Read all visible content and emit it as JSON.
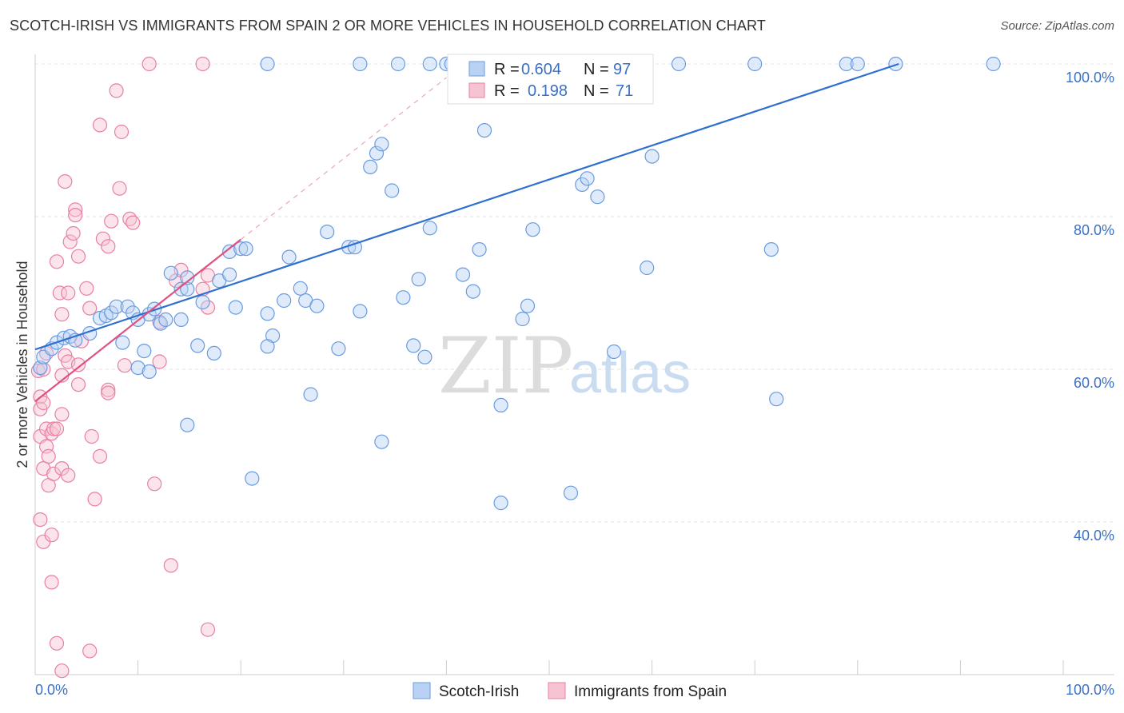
{
  "title": "SCOTCH-IRISH VS IMMIGRANTS FROM SPAIN 2 OR MORE VEHICLES IN HOUSEHOLD CORRELATION CHART",
  "source": "Source: ZipAtlas.com",
  "watermark": {
    "zip": "ZIP",
    "atlas": "atlas"
  },
  "colors": {
    "blue": "#6a9be0",
    "blue_fill": "#b9d2f3",
    "blue_line": "#2f6fcf",
    "pink": "#e880a2",
    "pink_fill": "#f6c3d3",
    "pink_line": "#e0517f",
    "tick_text": "#3a6fc4"
  },
  "legend": {
    "rows": [
      {
        "r_label": "R =",
        "r_value": "0.604",
        "n_label": "N =",
        "n_value": "97"
      },
      {
        "r_label": "R =",
        "r_value": "0.198",
        "n_label": "N =",
        "n_value": "71"
      }
    ]
  },
  "bottom_legend": [
    "Scotch-Irish",
    "Immigrants from Spain"
  ],
  "chart_data": {
    "type": "scatter",
    "title": "SCOTCH-IRISH VS IMMIGRANTS FROM SPAIN 2 OR MORE VEHICLES IN HOUSEHOLD CORRELATION CHART",
    "xlabel": "",
    "ylabel": "2 or more Vehicles in Household",
    "xlim": [
      0,
      100
    ],
    "ylim": [
      20,
      100
    ],
    "x_tick_labels": [
      "0.0%",
      "100.0%"
    ],
    "y_ticks": [
      40,
      60,
      80,
      100
    ],
    "y_tick_labels": [
      "40.0%",
      "60.0%",
      "80.0%",
      "100.0%"
    ],
    "grid": true,
    "series": [
      {
        "name": "Scotch-Irish",
        "color": "#6a9be0",
        "trend": {
          "x": [
            0,
            84
          ],
          "y": [
            62.6,
            100
          ]
        },
        "points": [
          [
            0.5,
            60.2
          ],
          [
            0.8,
            61.6
          ],
          [
            1.6,
            62.7
          ],
          [
            2.1,
            63.5
          ],
          [
            2.8,
            64.1
          ],
          [
            3.4,
            64.3
          ],
          [
            3.9,
            63.8
          ],
          [
            5.3,
            64.7
          ],
          [
            6.3,
            66.7
          ],
          [
            6.9,
            67.0
          ],
          [
            7.4,
            67.4
          ],
          [
            7.9,
            68.2
          ],
          [
            8.5,
            63.5
          ],
          [
            9.0,
            68.2
          ],
          [
            9.5,
            67.4
          ],
          [
            10.0,
            66.5
          ],
          [
            11.1,
            67.2
          ],
          [
            11.6,
            67.9
          ],
          [
            12.2,
            66.0
          ],
          [
            12.7,
            66.5
          ],
          [
            10.6,
            62.4
          ],
          [
            10.0,
            60.2
          ],
          [
            11.1,
            59.7
          ],
          [
            13.2,
            72.6
          ],
          [
            14.2,
            70.5
          ],
          [
            14.8,
            70.5
          ],
          [
            16.3,
            68.8
          ],
          [
            14.2,
            66.5
          ],
          [
            15.8,
            63.1
          ],
          [
            17.4,
            62.1
          ],
          [
            14.8,
            72.0
          ],
          [
            17.9,
            71.6
          ],
          [
            18.9,
            72.4
          ],
          [
            18.9,
            75.4
          ],
          [
            20.0,
            75.8
          ],
          [
            20.5,
            75.8
          ],
          [
            19.5,
            68.1
          ],
          [
            22.6,
            67.3
          ],
          [
            23.1,
            64.4
          ],
          [
            22.6,
            63.0
          ],
          [
            24.2,
            69.0
          ],
          [
            24.7,
            74.7
          ],
          [
            25.8,
            70.6
          ],
          [
            26.3,
            69.0
          ],
          [
            27.4,
            68.3
          ],
          [
            28.4,
            78.0
          ],
          [
            29.5,
            62.7
          ],
          [
            30.5,
            76.0
          ],
          [
            31.1,
            76.0
          ],
          [
            31.6,
            67.6
          ],
          [
            32.6,
            86.5
          ],
          [
            33.2,
            88.3
          ],
          [
            33.7,
            89.5
          ],
          [
            34.7,
            83.4
          ],
          [
            35.8,
            69.4
          ],
          [
            36.8,
            63.1
          ],
          [
            37.3,
            71.8
          ],
          [
            37.9,
            61.6
          ],
          [
            38.4,
            78.5
          ],
          [
            41.6,
            72.4
          ],
          [
            42.6,
            70.2
          ],
          [
            43.2,
            75.7
          ],
          [
            43.7,
            91.3
          ],
          [
            45.3,
            55.3
          ],
          [
            45.3,
            42.5
          ],
          [
            47.4,
            66.6
          ],
          [
            47.9,
            68.3
          ],
          [
            48.4,
            78.3
          ],
          [
            56.3,
            62.3
          ],
          [
            59.5,
            73.3
          ],
          [
            60.0,
            87.9
          ],
          [
            71.6,
            75.7
          ],
          [
            72.1,
            56.1
          ],
          [
            26.8,
            56.7
          ],
          [
            33.7,
            50.5
          ],
          [
            14.8,
            52.7
          ],
          [
            21.1,
            45.7
          ],
          [
            52.1,
            43.8
          ],
          [
            53.2,
            84.2
          ],
          [
            53.7,
            85.0
          ],
          [
            54.7,
            82.6
          ],
          [
            22.6,
            100
          ],
          [
            31.6,
            100
          ],
          [
            35.3,
            100
          ],
          [
            38.4,
            100
          ],
          [
            40.0,
            100
          ],
          [
            40.5,
            100
          ],
          [
            45.3,
            100
          ],
          [
            48.9,
            100
          ],
          [
            51.1,
            100
          ],
          [
            52.6,
            100
          ],
          [
            62.6,
            100
          ],
          [
            70.0,
            100
          ],
          [
            78.9,
            100
          ],
          [
            80.0,
            100
          ],
          [
            83.7,
            100
          ],
          [
            93.2,
            100
          ]
        ]
      },
      {
        "name": "Immigrants from Spain",
        "color": "#e880a2",
        "trend": {
          "x": [
            0,
            20
          ],
          "y": [
            55.8,
            77.0
          ]
        },
        "trend_extension": {
          "x": [
            20,
            40
          ],
          "y": [
            77.0,
            98.2
          ]
        },
        "points": [
          [
            0.3,
            59.8
          ],
          [
            0.5,
            56.4
          ],
          [
            0.5,
            54.8
          ],
          [
            0.5,
            51.2
          ],
          [
            0.5,
            40.3
          ],
          [
            0.8,
            37.4
          ],
          [
            0.8,
            47.0
          ],
          [
            0.8,
            55.6
          ],
          [
            1.1,
            49.9
          ],
          [
            1.1,
            52.2
          ],
          [
            1.3,
            44.8
          ],
          [
            1.3,
            48.6
          ],
          [
            1.6,
            51.6
          ],
          [
            1.6,
            38.3
          ],
          [
            1.6,
            32.1
          ],
          [
            1.8,
            46.3
          ],
          [
            1.8,
            52.2
          ],
          [
            2.1,
            74.1
          ],
          [
            2.1,
            52.2
          ],
          [
            2.1,
            24.1
          ],
          [
            2.4,
            70.0
          ],
          [
            2.6,
            59.2
          ],
          [
            2.6,
            67.2
          ],
          [
            2.6,
            54.1
          ],
          [
            2.6,
            47.0
          ],
          [
            2.6,
            20.5
          ],
          [
            2.9,
            84.6
          ],
          [
            2.9,
            61.8
          ],
          [
            3.2,
            70.0
          ],
          [
            3.2,
            61.0
          ],
          [
            3.2,
            46.1
          ],
          [
            3.4,
            76.7
          ],
          [
            3.7,
            77.8
          ],
          [
            3.9,
            80.9
          ],
          [
            3.9,
            80.2
          ],
          [
            4.2,
            60.6
          ],
          [
            4.2,
            74.8
          ],
          [
            4.2,
            58.0
          ],
          [
            4.5,
            63.7
          ],
          [
            5.0,
            70.6
          ],
          [
            5.3,
            68.0
          ],
          [
            5.3,
            23.1
          ],
          [
            5.5,
            51.2
          ],
          [
            5.8,
            43.0
          ],
          [
            6.3,
            48.6
          ],
          [
            6.3,
            92.0
          ],
          [
            6.6,
            77.1
          ],
          [
            7.1,
            76.1
          ],
          [
            7.1,
            57.3
          ],
          [
            7.1,
            56.9
          ],
          [
            7.4,
            79.4
          ],
          [
            7.9,
            96.5
          ],
          [
            8.2,
            83.7
          ],
          [
            8.4,
            91.1
          ],
          [
            8.7,
            60.5
          ],
          [
            9.2,
            79.7
          ],
          [
            9.5,
            79.2
          ],
          [
            11.1,
            100
          ],
          [
            11.6,
            45.0
          ],
          [
            12.1,
            61.0
          ],
          [
            12.1,
            66.2
          ],
          [
            13.2,
            34.3
          ],
          [
            13.7,
            71.6
          ],
          [
            14.2,
            73.0
          ],
          [
            16.3,
            100
          ],
          [
            16.8,
            72.3
          ],
          [
            16.8,
            68.1
          ],
          [
            16.3,
            70.5
          ],
          [
            16.8,
            25.9
          ],
          [
            0.8,
            60.0
          ],
          [
            1.1,
            62.1
          ]
        ]
      }
    ]
  }
}
